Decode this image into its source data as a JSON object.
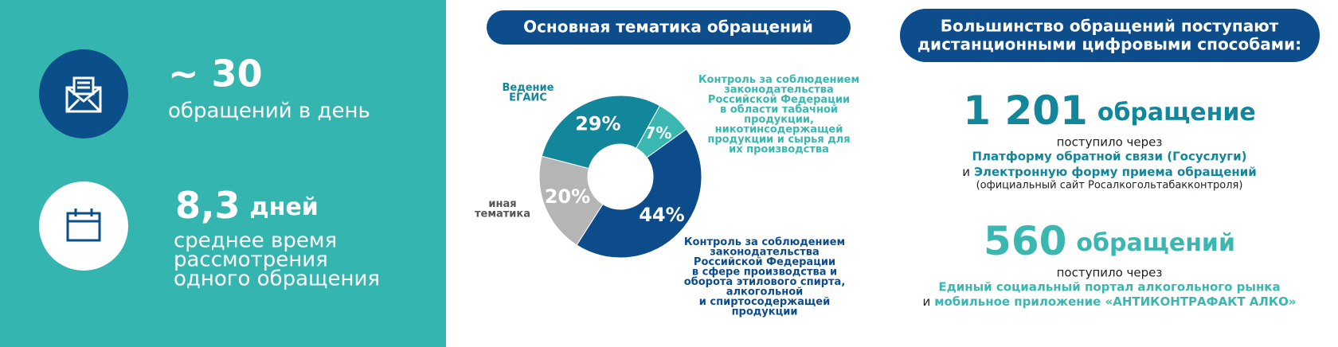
{
  "left": {
    "stats": [
      {
        "value": "~ 30",
        "caption": "обращений в день"
      },
      {
        "value": "8,3",
        "unit": "дней",
        "caption": [
          "среднее время",
          "рассмотрения",
          "одного обращения"
        ]
      }
    ]
  },
  "chart_data": {
    "type": "donut",
    "title": "Основная тематика обращений",
    "categories": [
      "Контроль за соблюдением\nзаконодательства\nРоссийской Федерации\nв области табачной\nпродукции,\nникотинсодержащей\nпродукции и сырья для\nих производства",
      "Контроль за соблюдением\nзаконодательства\nРоссийской Федерации\nв сфере производства и\nоборота этилового спирта,\nалкогольной\nи спиртосодержащей\nпродукции",
      "иная\nтематика",
      "Ведение\nЕГАИС"
    ],
    "values": [
      7,
      44,
      20,
      29
    ],
    "value_labels": [
      "7%",
      "44%",
      "20%",
      "29%"
    ],
    "colors": [
      "#39b7b0",
      "#0d4c8a",
      "#b5b5b5",
      "#12869b"
    ]
  },
  "right": {
    "title": [
      "Большинство обращений поступают",
      "дистанционными цифровыми способами:"
    ],
    "blocks": [
      {
        "number": "1 201",
        "unit": "обращение",
        "via": "поступило через",
        "line1": "Платформу обратной связи (Госуслуги)",
        "and": "и",
        "line2": "Электронную форму приема обращений",
        "note": "(официальный сайт Росалкогольтабакконтроля)"
      },
      {
        "number": "560",
        "unit": "обращений",
        "via": "поступило через",
        "line1": "Единый социальный портал алкогольного рынка",
        "and": "и",
        "line2": "мобильное приложение «АНТИКОНТРАФАКТ АЛКО»"
      }
    ]
  }
}
